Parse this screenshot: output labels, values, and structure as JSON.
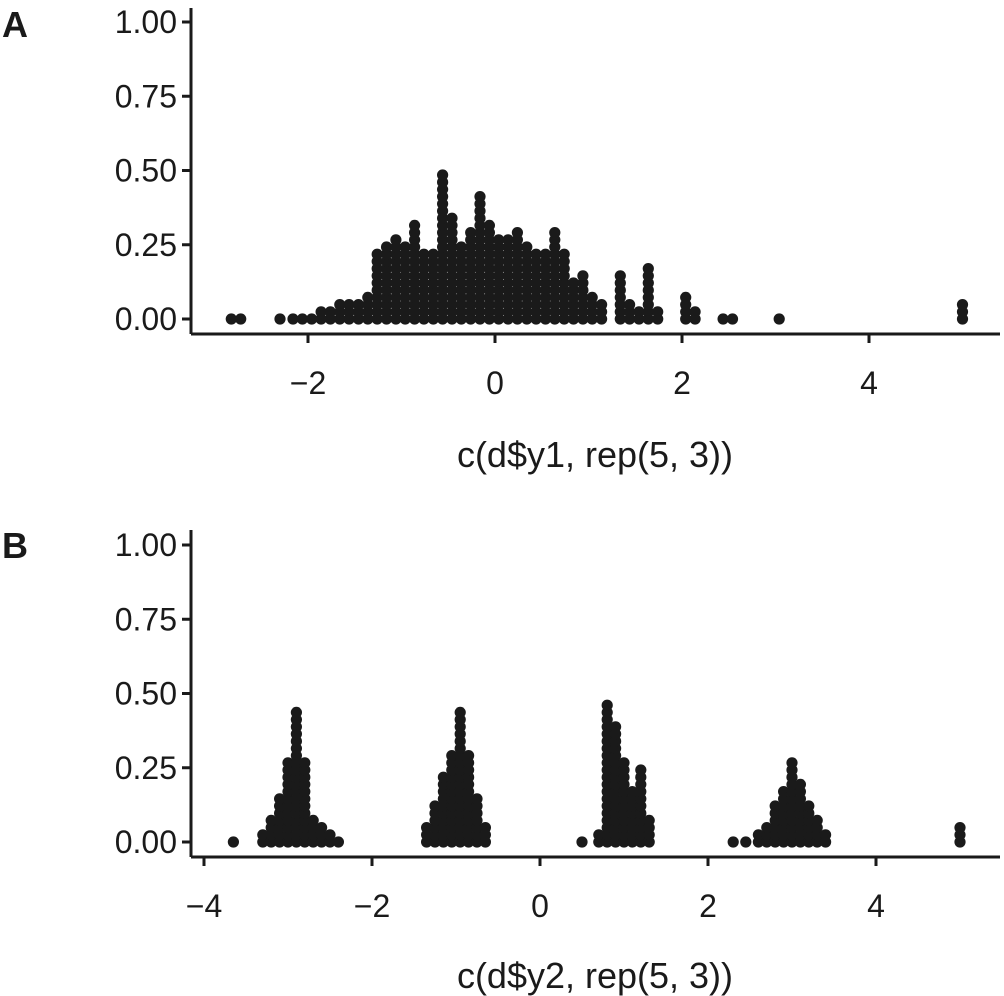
{
  "chart_data": [
    {
      "panel": "A",
      "type": "dotplot",
      "xlabel": "c(d$y1, rep(5, 3))",
      "xlim": [
        -3.0,
        5.6
      ],
      "ylim": [
        0,
        1.0
      ],
      "xticks": [
        -2,
        0,
        2,
        4
      ],
      "xtick_labels": [
        "−2",
        "0",
        "2",
        "4"
      ],
      "yticks": [
        0,
        0.25,
        0.5,
        0.75,
        1.0
      ],
      "ytick_labels": [
        "0.00",
        "0.25",
        "0.50",
        "0.75",
        "1.00"
      ],
      "stacks": [
        {
          "x": -2.82,
          "n": 1
        },
        {
          "x": -2.72,
          "n": 1
        },
        {
          "x": -2.3,
          "n": 1
        },
        {
          "x": -2.16,
          "n": 1
        },
        {
          "x": -2.06,
          "n": 1
        },
        {
          "x": -1.96,
          "n": 1
        },
        {
          "x": -1.86,
          "n": 2
        },
        {
          "x": -1.76,
          "n": 2
        },
        {
          "x": -1.66,
          "n": 3
        },
        {
          "x": -1.56,
          "n": 3
        },
        {
          "x": -1.46,
          "n": 3
        },
        {
          "x": -1.36,
          "n": 4
        },
        {
          "x": -1.26,
          "n": 10
        },
        {
          "x": -1.16,
          "n": 11
        },
        {
          "x": -1.06,
          "n": 12
        },
        {
          "x": -0.96,
          "n": 11
        },
        {
          "x": -0.86,
          "n": 14
        },
        {
          "x": -0.76,
          "n": 10
        },
        {
          "x": -0.66,
          "n": 10
        },
        {
          "x": -0.56,
          "n": 21
        },
        {
          "x": -0.46,
          "n": 15
        },
        {
          "x": -0.36,
          "n": 11
        },
        {
          "x": -0.26,
          "n": 13
        },
        {
          "x": -0.16,
          "n": 18
        },
        {
          "x": -0.06,
          "n": 14
        },
        {
          "x": 0.04,
          "n": 12
        },
        {
          "x": 0.14,
          "n": 12
        },
        {
          "x": 0.24,
          "n": 13
        },
        {
          "x": 0.34,
          "n": 11
        },
        {
          "x": 0.44,
          "n": 10
        },
        {
          "x": 0.54,
          "n": 10
        },
        {
          "x": 0.64,
          "n": 13
        },
        {
          "x": 0.74,
          "n": 10
        },
        {
          "x": 0.84,
          "n": 6
        },
        {
          "x": 0.94,
          "n": 7
        },
        {
          "x": 1.04,
          "n": 4
        },
        {
          "x": 1.14,
          "n": 3
        },
        {
          "x": 1.34,
          "n": 7
        },
        {
          "x": 1.44,
          "n": 3
        },
        {
          "x": 1.54,
          "n": 2
        },
        {
          "x": 1.64,
          "n": 8
        },
        {
          "x": 1.74,
          "n": 2
        },
        {
          "x": 2.04,
          "n": 4
        },
        {
          "x": 2.14,
          "n": 2
        },
        {
          "x": 2.44,
          "n": 1
        },
        {
          "x": 2.54,
          "n": 1
        },
        {
          "x": 3.04,
          "n": 1
        },
        {
          "x": 5.0,
          "n": 3
        }
      ]
    },
    {
      "panel": "B",
      "type": "dotplot",
      "xlabel": "c(d$y2, rep(5, 3))",
      "xlim": [
        -4.1,
        5.5
      ],
      "ylim": [
        0,
        1.0
      ],
      "xticks": [
        -4,
        -2,
        0,
        2,
        4
      ],
      "xtick_labels": [
        "−4",
        "−2",
        "0",
        "2",
        "4"
      ],
      "yticks": [
        0,
        0.25,
        0.5,
        0.75,
        1.0
      ],
      "ytick_labels": [
        "0.00",
        "0.25",
        "0.50",
        "0.75",
        "1.00"
      ],
      "stacks": [
        {
          "x": -3.65,
          "n": 1
        },
        {
          "x": -3.3,
          "n": 2
        },
        {
          "x": -3.2,
          "n": 4
        },
        {
          "x": -3.1,
          "n": 7
        },
        {
          "x": -3.0,
          "n": 12
        },
        {
          "x": -2.9,
          "n": 19
        },
        {
          "x": -2.8,
          "n": 12
        },
        {
          "x": -2.7,
          "n": 4
        },
        {
          "x": -2.6,
          "n": 3
        },
        {
          "x": -2.5,
          "n": 2
        },
        {
          "x": -2.4,
          "n": 1
        },
        {
          "x": -1.35,
          "n": 3
        },
        {
          "x": -1.25,
          "n": 6
        },
        {
          "x": -1.15,
          "n": 10
        },
        {
          "x": -1.05,
          "n": 13
        },
        {
          "x": -0.95,
          "n": 19
        },
        {
          "x": -0.85,
          "n": 13
        },
        {
          "x": -0.75,
          "n": 7
        },
        {
          "x": -0.65,
          "n": 3
        },
        {
          "x": 0.5,
          "n": 1
        },
        {
          "x": 0.7,
          "n": 2
        },
        {
          "x": 0.8,
          "n": 20
        },
        {
          "x": 0.9,
          "n": 17
        },
        {
          "x": 1.0,
          "n": 12
        },
        {
          "x": 1.1,
          "n": 8
        },
        {
          "x": 1.2,
          "n": 11
        },
        {
          "x": 1.3,
          "n": 4
        },
        {
          "x": 2.3,
          "n": 1
        },
        {
          "x": 2.45,
          "n": 1
        },
        {
          "x": 2.6,
          "n": 2
        },
        {
          "x": 2.7,
          "n": 3
        },
        {
          "x": 2.8,
          "n": 6
        },
        {
          "x": 2.9,
          "n": 8
        },
        {
          "x": 3.0,
          "n": 12
        },
        {
          "x": 3.1,
          "n": 9
        },
        {
          "x": 3.2,
          "n": 6
        },
        {
          "x": 3.3,
          "n": 4
        },
        {
          "x": 3.4,
          "n": 2
        },
        {
          "x": 5.0,
          "n": 3
        }
      ]
    }
  ]
}
